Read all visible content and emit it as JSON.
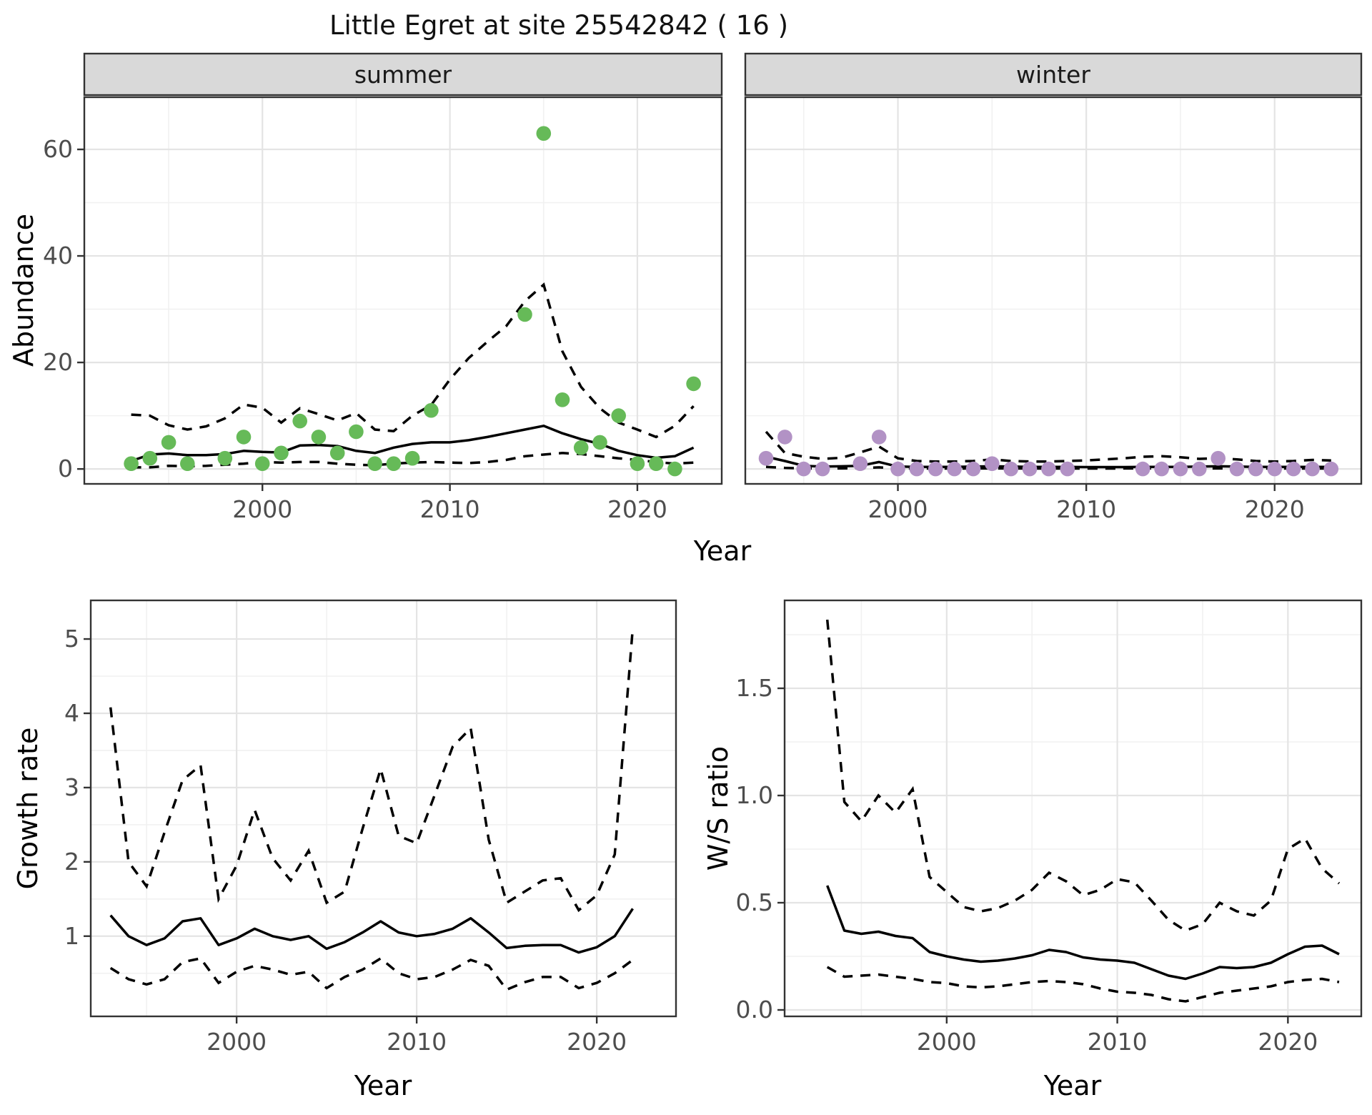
{
  "title": "Little Egret at site 25542842 ( 16 )",
  "colors": {
    "summer_point": "#66BA58",
    "winter_point": "#B292C5",
    "line": "#000000",
    "strip_bg": "#D9D9D9",
    "panel_border": "#333333",
    "grid_major": "#E4E4E4",
    "grid_minor": "#F1F1F1",
    "tick_label": "#4D4D4D"
  },
  "chart_data": [
    {
      "id": "abundance",
      "type": "scatter",
      "title": "",
      "xlabel": "Year",
      "ylabel": "Abundance",
      "xticks": [
        2000,
        2010,
        2020
      ],
      "xminor": [
        1995,
        2005,
        2015
      ],
      "yticks": [
        0,
        20,
        40,
        60
      ],
      "yminor": [
        10,
        30,
        50
      ],
      "ylim": [
        -2.8,
        69.8
      ],
      "xlim": [
        1990.5,
        2024.5
      ],
      "legend": "none",
      "facets": [
        {
          "label": "summer",
          "points": {
            "years": [
              1993,
              1994,
              1995,
              1996,
              1998,
              1999,
              2000,
              2001,
              2002,
              2003,
              2004,
              2005,
              2006,
              2007,
              2008,
              2009,
              2014,
              2015,
              2016,
              2017,
              2018,
              2019,
              2020,
              2021,
              2022,
              2023
            ],
            "values": [
              1,
              2,
              5,
              1,
              2,
              6,
              1,
              3,
              9,
              6,
              3,
              7,
              1,
              1,
              2,
              11,
              29,
              63,
              13,
              4,
              5,
              10,
              1,
              1,
              0,
              16
            ]
          },
          "median": {
            "start_year": 1993,
            "values": [
              1.5,
              2.7,
              2.9,
              2.6,
              2.6,
              2.8,
              3.4,
              3.2,
              3.1,
              4.4,
              4.5,
              4.3,
              3.4,
              3.0,
              4.0,
              4.7,
              5.0,
              5.0,
              5.4,
              6.0,
              6.7,
              7.4,
              8.1,
              6.7,
              5.6,
              4.7,
              3.4,
              2.6,
              2.1,
              2.4,
              4.0
            ]
          },
          "upper": {
            "start_year": 1993,
            "values": [
              10.2,
              10.0,
              8.2,
              7.4,
              8.0,
              9.5,
              12.1,
              11.5,
              8.7,
              11.4,
              10.3,
              9.1,
              10.5,
              7.4,
              7.1,
              10.0,
              12.0,
              16.8,
              20.8,
              23.9,
              26.8,
              31.5,
              34.6,
              22.1,
              15.4,
              11.4,
              8.7,
              7.4,
              6.0,
              8.1,
              11.8
            ]
          },
          "lower": {
            "start_year": 1993,
            "values": [
              0.3,
              0.3,
              0.6,
              0.5,
              0.6,
              0.8,
              1.0,
              1.3,
              1.2,
              1.3,
              1.3,
              1.0,
              0.8,
              0.7,
              1.0,
              1.2,
              1.3,
              1.2,
              1.1,
              1.3,
              1.7,
              2.4,
              2.7,
              3.0,
              2.8,
              2.4,
              2.0,
              1.7,
              1.3,
              1.0,
              1.2
            ]
          }
        },
        {
          "label": "winter",
          "points": {
            "years": [
              1993,
              1994,
              1995,
              1996,
              1998,
              1999,
              2000,
              2001,
              2002,
              2003,
              2004,
              2005,
              2006,
              2007,
              2008,
              2009,
              2013,
              2014,
              2015,
              2016,
              2017,
              2018,
              2019,
              2020,
              2021,
              2022,
              2023
            ],
            "values": [
              2,
              6,
              0,
              0,
              1,
              6,
              0,
              0,
              0,
              0,
              0,
              1,
              0,
              0,
              0,
              0,
              0,
              0,
              0,
              0,
              2,
              0,
              0,
              0,
              0,
              0,
              0
            ]
          },
          "median": {
            "start_year": 1993,
            "values": [
              2.3,
              1.5,
              0.6,
              0.45,
              0.5,
              0.6,
              1.3,
              0.45,
              0.4,
              0.4,
              0.4,
              0.45,
              0.5,
              0.45,
              0.4,
              0.4,
              0.4,
              0.35,
              0.35,
              0.35,
              0.4,
              0.4,
              0.4,
              0.45,
              0.5,
              0.45,
              0.4,
              0.4,
              0.4,
              0.4,
              0.4
            ]
          },
          "upper": {
            "start_year": 1993,
            "values": [
              7.0,
              3.0,
              2.3,
              1.9,
              2.1,
              3.1,
              4.2,
              2.0,
              1.5,
              1.4,
              1.4,
              1.5,
              1.8,
              1.5,
              1.4,
              1.4,
              1.5,
              1.6,
              1.8,
              2.0,
              2.3,
              2.4,
              2.2,
              1.9,
              2.0,
              1.8,
              1.5,
              1.4,
              1.5,
              1.7,
              1.6
            ]
          },
          "lower": {
            "start_year": 1993,
            "values": [
              0.4,
              0.2,
              0.1,
              0.1,
              0.1,
              0.15,
              0.3,
              0.1,
              0.08,
              0.08,
              0.08,
              0.1,
              0.1,
              0.1,
              0.08,
              0.08,
              0.08,
              0.08,
              0.08,
              0.1,
              0.1,
              0.1,
              0.1,
              0.1,
              0.1,
              0.1,
              0.08,
              0.08,
              0.08,
              0.08,
              0.08
            ]
          }
        }
      ]
    },
    {
      "id": "growth_rate",
      "type": "line",
      "xlabel": "Year",
      "ylabel": "Growth rate",
      "xticks": [
        2000,
        2010,
        2020
      ],
      "xminor": [
        1995,
        2005,
        2015
      ],
      "yticks": [
        1,
        2,
        3,
        4,
        5
      ],
      "yminor": [
        0.5,
        1.5,
        2.5,
        3.5,
        4.5
      ],
      "ylim": [
        -0.08,
        5.52
      ],
      "xlim": [
        1991.9,
        2024.4
      ],
      "median": {
        "start_year": 1993,
        "values": [
          1.28,
          1.0,
          0.88,
          0.97,
          1.2,
          1.24,
          0.88,
          0.97,
          1.1,
          1.0,
          0.95,
          1.0,
          0.83,
          0.92,
          1.05,
          1.2,
          1.05,
          1.0,
          1.03,
          1.1,
          1.24,
          1.05,
          0.84,
          0.87,
          0.88,
          0.88,
          0.78,
          0.85,
          1.0,
          1.37
        ]
      },
      "upper": {
        "start_year": 1993,
        "values": [
          4.08,
          2.0,
          1.67,
          2.4,
          3.1,
          3.3,
          1.5,
          1.95,
          2.7,
          2.05,
          1.75,
          2.15,
          1.45,
          1.6,
          2.45,
          3.25,
          2.35,
          2.25,
          2.9,
          3.55,
          3.8,
          2.3,
          1.45,
          1.6,
          1.75,
          1.78,
          1.35,
          1.55,
          2.1,
          5.15
        ]
      },
      "lower": {
        "start_year": 1993,
        "values": [
          0.57,
          0.42,
          0.35,
          0.42,
          0.65,
          0.7,
          0.37,
          0.52,
          0.6,
          0.55,
          0.48,
          0.52,
          0.3,
          0.45,
          0.55,
          0.7,
          0.5,
          0.42,
          0.45,
          0.55,
          0.68,
          0.6,
          0.28,
          0.38,
          0.45,
          0.45,
          0.3,
          0.37,
          0.5,
          0.68
        ]
      }
    },
    {
      "id": "ws_ratio",
      "type": "line",
      "xlabel": "Year",
      "ylabel": "W/S ratio",
      "xticks": [
        2000,
        2010,
        2020
      ],
      "xminor": [
        1995,
        2005,
        2015
      ],
      "yticks": [
        0.0,
        0.5,
        1.0,
        1.5
      ],
      "ytick_labels": [
        "0.0",
        "0.5",
        "1.0",
        "1.5"
      ],
      "yminor": [
        0.25,
        0.75,
        1.25,
        1.75
      ],
      "ylim": [
        -0.03,
        1.91
      ],
      "xlim": [
        1990.5,
        2024.3
      ],
      "median": {
        "start_year": 1993,
        "values": [
          0.58,
          0.37,
          0.355,
          0.365,
          0.345,
          0.335,
          0.27,
          0.25,
          0.235,
          0.225,
          0.23,
          0.24,
          0.255,
          0.28,
          0.27,
          0.245,
          0.235,
          0.23,
          0.22,
          0.19,
          0.16,
          0.145,
          0.17,
          0.2,
          0.195,
          0.2,
          0.22,
          0.26,
          0.295,
          0.3,
          0.26
        ]
      },
      "upper": {
        "start_year": 1993,
        "values": [
          1.82,
          0.97,
          0.88,
          1.0,
          0.92,
          1.03,
          0.62,
          0.55,
          0.48,
          0.46,
          0.475,
          0.51,
          0.56,
          0.64,
          0.6,
          0.535,
          0.56,
          0.61,
          0.595,
          0.51,
          0.42,
          0.37,
          0.4,
          0.5,
          0.46,
          0.44,
          0.51,
          0.75,
          0.8,
          0.66,
          0.59
        ]
      },
      "lower": {
        "start_year": 1993,
        "values": [
          0.2,
          0.155,
          0.16,
          0.165,
          0.155,
          0.145,
          0.13,
          0.125,
          0.11,
          0.105,
          0.11,
          0.12,
          0.13,
          0.135,
          0.13,
          0.12,
          0.1,
          0.085,
          0.08,
          0.07,
          0.05,
          0.04,
          0.06,
          0.08,
          0.09,
          0.1,
          0.11,
          0.13,
          0.14,
          0.145,
          0.13
        ]
      }
    }
  ]
}
